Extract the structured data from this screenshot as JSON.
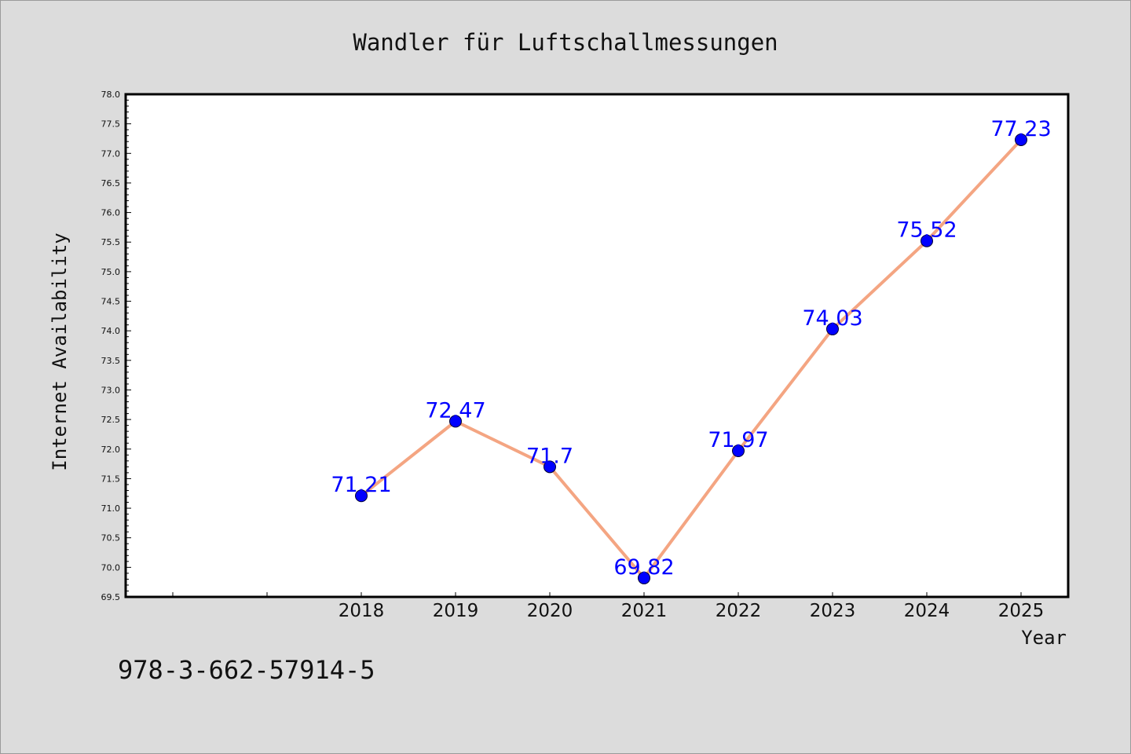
{
  "chart_data": {
    "type": "line",
    "title": "Wandler für Luftschallmessungen",
    "xlabel": "Year",
    "ylabel": "Internet Availability",
    "categories": [
      "2018",
      "2019",
      "2020",
      "2021",
      "2022",
      "2023",
      "2024",
      "2025"
    ],
    "extra_x_ticks": 2,
    "series": [
      {
        "values": [
          71.21,
          72.47,
          71.7,
          69.82,
          71.97,
          74.03,
          75.52,
          77.23
        ],
        "labels": [
          "71.21",
          "72.47",
          "71.7",
          "69.82",
          "71.97",
          "74.03",
          "75.52",
          "77.23"
        ]
      }
    ],
    "ylim": [
      69.5,
      78.0
    ],
    "yticks": [
      "69.5",
      "70.0",
      "70.5",
      "71.0",
      "71.5",
      "72.0",
      "72.5",
      "73.0",
      "73.5",
      "74.0",
      "74.5",
      "75.0",
      "75.5",
      "76.0",
      "76.5",
      "77.0",
      "77.5",
      "78.0"
    ],
    "grid": false,
    "line_color": "#f4a582",
    "marker_color": "#0000ff",
    "label_color": "#0000ff"
  },
  "annotation": {
    "isbn": "978-3-662-57914-5"
  }
}
